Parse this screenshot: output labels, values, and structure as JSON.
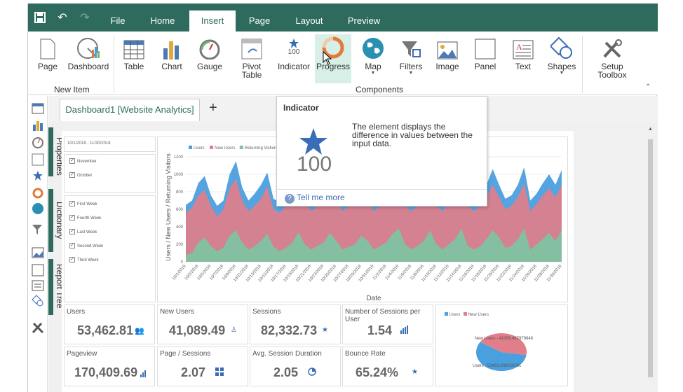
{
  "titlebar": {
    "tabs": [
      "File",
      "Home",
      "Insert",
      "Page",
      "Layout",
      "Preview"
    ],
    "active_tab": "Insert"
  },
  "ribbon": {
    "new_item_buttons": [
      "Page",
      "Dashboard"
    ],
    "component_buttons": [
      "Table",
      "Chart",
      "Gauge",
      "Pivot\nTable",
      "Indicator",
      "Progress",
      "Map",
      "Filters",
      "Image",
      "Panel",
      "Text",
      "Shapes"
    ],
    "setup_label": "Setup\nToolbox",
    "group_new_item": "New Item",
    "group_components": "Components",
    "indicator_icon_value": "100"
  },
  "document_tab": "Dashboard1 [Website Analytics]",
  "side_panels": [
    "Properties",
    "Dictionary",
    "Report Tree"
  ],
  "tooltip": {
    "title": "Indicator",
    "description": "The element displays the difference in values between the input data.",
    "value": "100",
    "link": "Tell me more"
  },
  "dashboard": {
    "date_range": "10/1/2018 - 11/30/2018",
    "month_filters": [
      "November",
      "October"
    ],
    "week_filters": [
      "First Week",
      "Fourth Week",
      "Last Week",
      "Second Week",
      "Third Week"
    ],
    "kpis": [
      {
        "title": "Users",
        "value": "53,462.81"
      },
      {
        "title": "New Users",
        "value": "41,089.49"
      },
      {
        "title": "Sessions",
        "value": "82,332.73"
      },
      {
        "title": "Number of Sessions per User",
        "value": "1.54"
      },
      {
        "title": "Pageview",
        "value": "170,409.69"
      },
      {
        "title": "Page / Sessions",
        "value": "2.07"
      },
      {
        "title": "Avg. Session Duration",
        "value": "2.05"
      },
      {
        "title": "Bounce Rate",
        "value": "65.24%"
      }
    ],
    "pie_legend": [
      "Users",
      "New Users"
    ],
    "pie_labels": [
      "New Users - 41089.487979846",
      "Users - 53462.808020091"
    ]
  },
  "chart_data": {
    "type": "area",
    "xlabel": "Date",
    "ylabel": "Users / New Users / Returning Visitors",
    "ylim": [
      0,
      1200
    ],
    "yticks": [
      "0",
      "200",
      "400",
      "600",
      "800",
      "1000",
      "1200"
    ],
    "xticks": [
      "10/1/2018",
      "10/3/2018",
      "10/5/2018",
      "10/7/2018",
      "10/9/2018",
      "10/11/2018",
      "10/13/2018",
      "10/15/2018",
      "10/17/2018",
      "10/19/2018",
      "10/21/2018",
      "10/23/2018",
      "10/25/2018",
      "10/27/2018",
      "10/29/2018",
      "10/31/2018",
      "11/2/2018",
      "11/4/2018",
      "11/6/2018",
      "11/8/2018",
      "11/10/2018",
      "11/12/2018",
      "11/14/2018",
      "11/16/2018",
      "11/18/2018",
      "11/20/2018",
      "11/22/2018",
      "11/24/2018",
      "11/26/2018",
      "11/28/2018",
      "11/30/2018"
    ],
    "legend": [
      "Users",
      "New Users",
      "Returning Visitors"
    ],
    "colors": [
      "#4a9fde",
      "#e27d8a",
      "#7bc5a4"
    ],
    "series": [
      {
        "name": "Users",
        "values": [
          650,
          700,
          900,
          980,
          760,
          640,
          700,
          1000,
          1150,
          850,
          700,
          780,
          880,
          1020,
          720,
          680,
          760,
          900,
          1120,
          820,
          700,
          760,
          860,
          1100,
          880,
          700,
          760,
          820,
          1050,
          860,
          700,
          760,
          820,
          980,
          1100,
          760,
          700,
          760,
          880,
          1050,
          760,
          700,
          820,
          900,
          1120,
          760,
          700,
          760,
          880,
          1060,
          880,
          720,
          760,
          880,
          1080,
          700,
          780,
          900,
          1000,
          880,
          1050
        ]
      },
      {
        "name": "New Users",
        "values": [
          560,
          620,
          760,
          820,
          640,
          520,
          600,
          840,
          950,
          700,
          580,
          640,
          720,
          860,
          600,
          560,
          640,
          760,
          920,
          680,
          580,
          640,
          720,
          900,
          720,
          580,
          640,
          700,
          880,
          720,
          580,
          640,
          700,
          820,
          920,
          640,
          580,
          640,
          740,
          860,
          640,
          580,
          680,
          760,
          920,
          640,
          580,
          640,
          740,
          880,
          740,
          600,
          640,
          740,
          900,
          580,
          660,
          760,
          840,
          740,
          880
        ]
      },
      {
        "name": "Returning Visitors",
        "values": [
          80,
          100,
          220,
          280,
          180,
          120,
          160,
          300,
          360,
          220,
          140,
          180,
          240,
          320,
          170,
          120,
          160,
          220,
          340,
          200,
          140,
          180,
          220,
          330,
          240,
          140,
          170,
          200,
          300,
          240,
          140,
          180,
          220,
          320,
          380,
          200,
          140,
          180,
          240,
          360,
          200,
          140,
          200,
          260,
          380,
          180,
          140,
          180,
          260,
          360,
          280,
          160,
          180,
          260,
          380,
          140,
          200,
          260,
          330,
          240,
          360
        ]
      }
    ]
  },
  "pie_data": {
    "type": "pie",
    "categories": [
      "Users",
      "New Users"
    ],
    "values": [
      53462.81,
      41089.49
    ],
    "colors": [
      "#4a9fde",
      "#e27d8a"
    ]
  }
}
